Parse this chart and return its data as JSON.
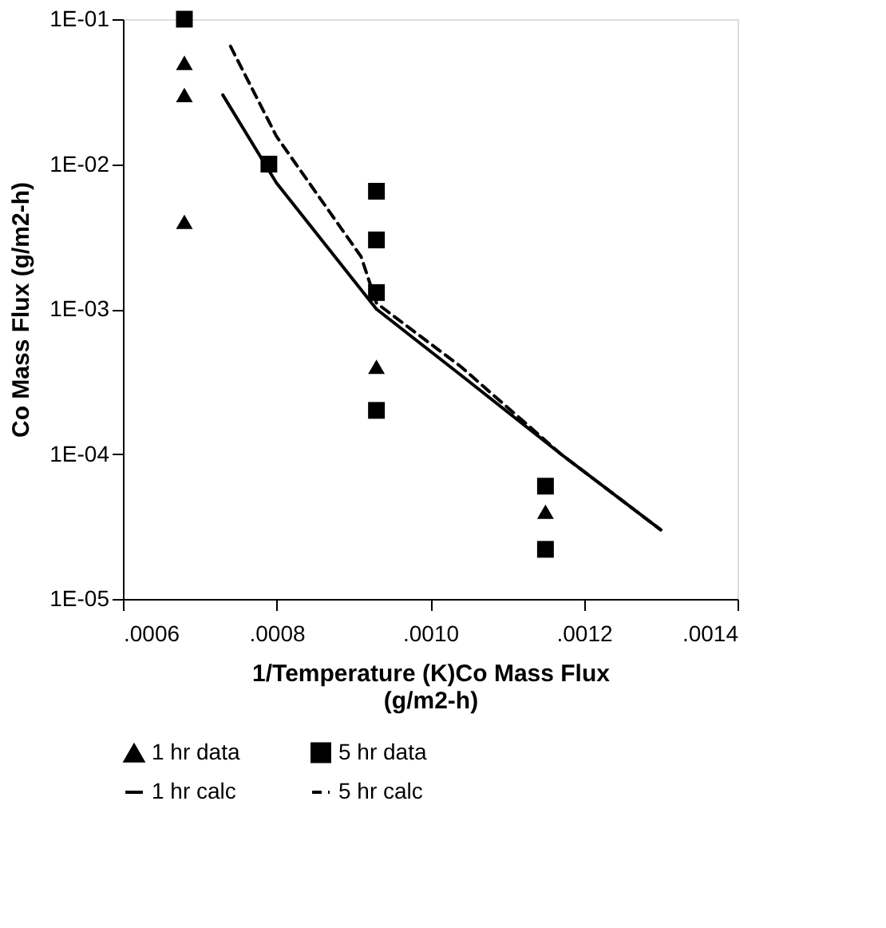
{
  "chart_data": {
    "type": "scatter",
    "xlabel": "1/Temperature (K)Co Mass Flux\n(g/m2-h)",
    "ylabel": "Co Mass Flux (g/m2-h)",
    "xlim": [
      0.0006,
      0.0014
    ],
    "xticks": [
      {
        "value": 0.0006,
        "label": ".0006"
      },
      {
        "value": 0.0008,
        "label": ".0008"
      },
      {
        "value": 0.001,
        "label": ".0010"
      },
      {
        "value": 0.0012,
        "label": ".0012"
      },
      {
        "value": 0.0014,
        "label": ".0014"
      }
    ],
    "ylim": [
      1e-05,
      0.1
    ],
    "yticks": [
      {
        "value": 1e-05,
        "label": "1E-05"
      },
      {
        "value": 0.0001,
        "label": "1E-04"
      },
      {
        "value": 0.001,
        "label": "1E-03"
      },
      {
        "value": 0.01,
        "label": "1E-02"
      },
      {
        "value": 0.1,
        "label": "1E-01"
      }
    ],
    "log": "y",
    "grid": false,
    "legend": "bottom",
    "series": [
      {
        "name": "1 hr data",
        "marker": "triangle",
        "color": "#000000",
        "x": [
          0.00068,
          0.00068,
          0.00068,
          0.00093,
          0.00115
        ],
        "values": [
          0.05,
          0.03,
          0.004,
          0.0004,
          4e-05
        ]
      },
      {
        "name": "5 hr data",
        "marker": "square",
        "color": "#000000",
        "x": [
          0.00068,
          0.00079,
          0.00093,
          0.00093,
          0.00093,
          0.00093,
          0.00115,
          0.00115
        ],
        "values": [
          0.1,
          0.01,
          0.0065,
          0.003,
          0.0013,
          0.0002,
          6e-05,
          2.2e-05
        ]
      },
      {
        "name": "1 hr calc",
        "type": "line",
        "marker": "none",
        "line_style": "solid",
        "color": "#000000",
        "x": [
          0.00073,
          0.0008,
          0.00093,
          0.00104,
          0.00117,
          0.0013
        ],
        "values": [
          0.03,
          0.0074,
          0.001,
          0.00035,
          0.0001,
          3e-05
        ]
      },
      {
        "name": "5 hr calc",
        "type": "line",
        "marker": "none",
        "line_style": "dashed",
        "color": "#000000",
        "x": [
          0.00074,
          0.0008,
          0.00091,
          0.00093,
          0.00104,
          0.00117,
          0.0013
        ],
        "values": [
          0.065,
          0.0155,
          0.0023,
          0.0011,
          0.0004,
          0.0001,
          3e-05
        ]
      }
    ]
  }
}
